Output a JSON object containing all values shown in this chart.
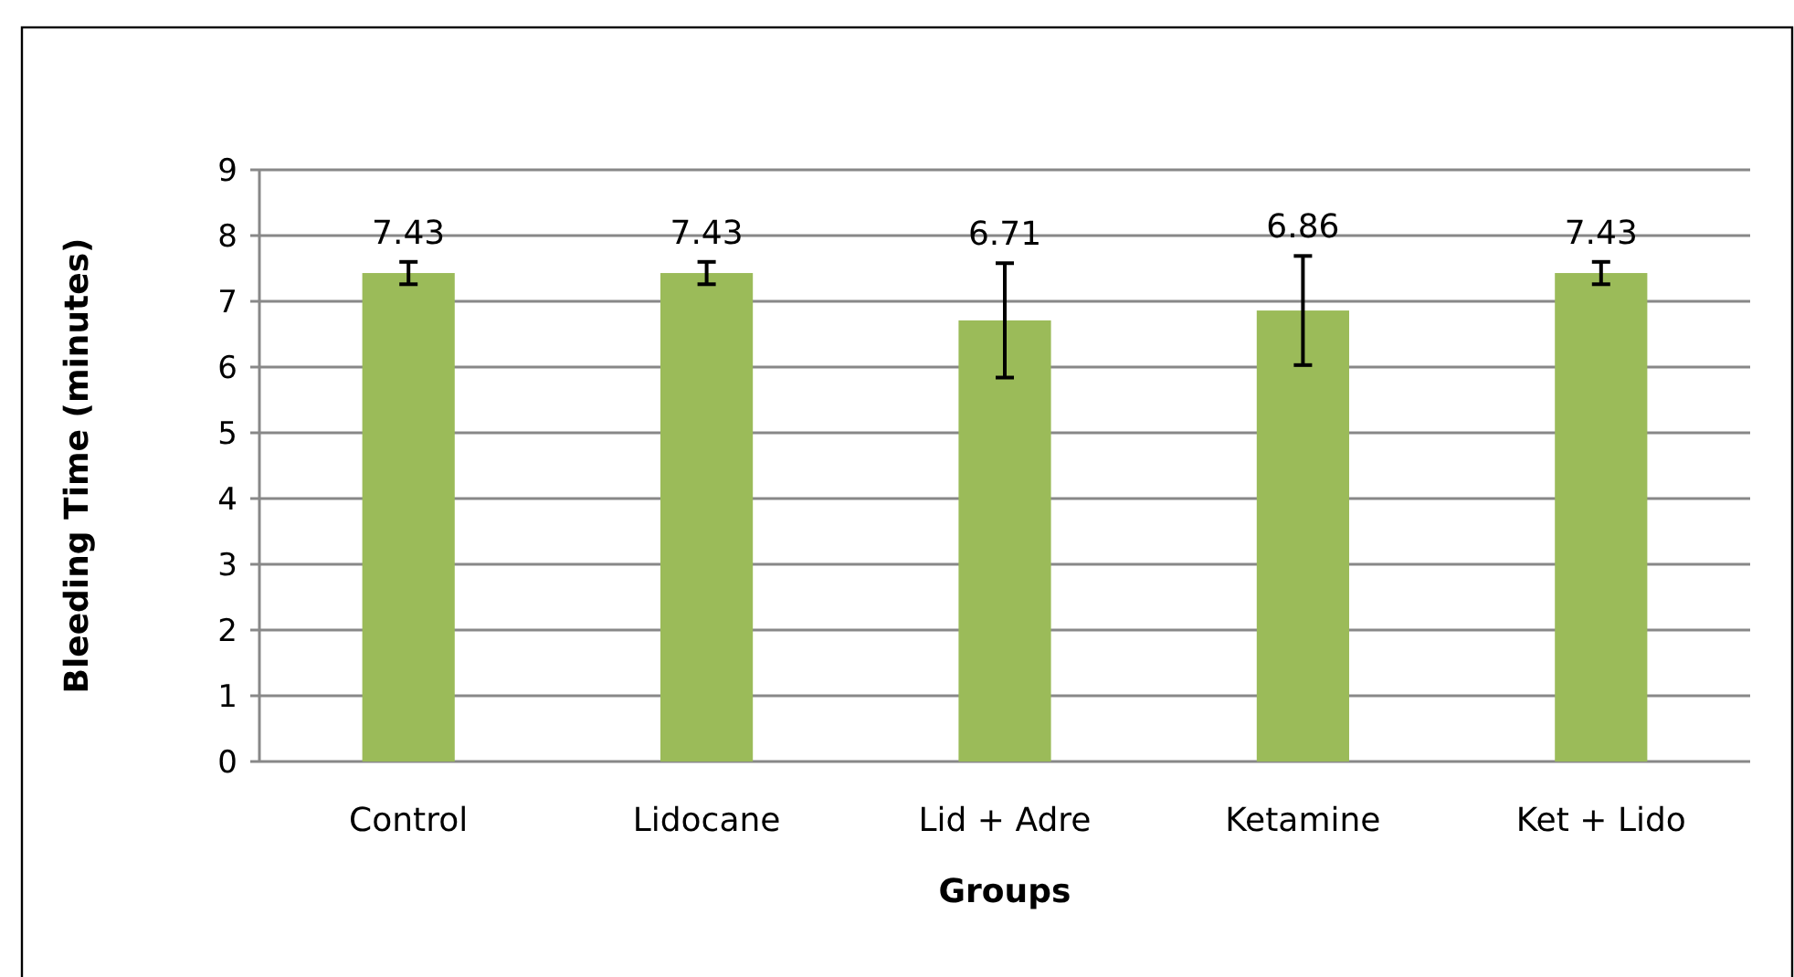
{
  "chart_data": {
    "type": "bar",
    "xlabel": "Groups",
    "ylabel": "Bleeding Time (minutes)",
    "categories": [
      "Control",
      "Lidocane",
      "Lid + Adre",
      "Ketamine",
      "Ket + Lido"
    ],
    "values": [
      7.43,
      7.43,
      6.71,
      6.86,
      7.43
    ],
    "errors": [
      0.17,
      0.17,
      0.87,
      0.83,
      0.17
    ],
    "color": "#9bbb59",
    "ylim": [
      0,
      9
    ],
    "yticks": [
      0,
      1,
      2,
      3,
      4,
      5,
      6,
      7,
      8,
      9
    ],
    "grid": "y",
    "data_labels": true
  }
}
